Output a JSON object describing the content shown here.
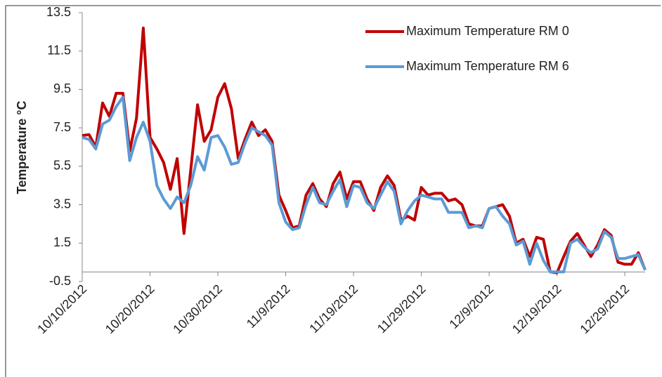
{
  "chart_data": {
    "type": "line",
    "ylabel": "Temperature °C",
    "x": [
      "10/10/2012",
      "10/11/2012",
      "10/12/2012",
      "10/13/2012",
      "10/14/2012",
      "10/15/2012",
      "10/16/2012",
      "10/17/2012",
      "10/18/2012",
      "10/19/2012",
      "10/20/2012",
      "10/21/2012",
      "10/22/2012",
      "10/23/2012",
      "10/24/2012",
      "10/25/2012",
      "10/26/2012",
      "10/27/2012",
      "10/28/2012",
      "10/29/2012",
      "10/30/2012",
      "10/31/2012",
      "11/1/2012",
      "11/2/2012",
      "11/3/2012",
      "11/4/2012",
      "11/5/2012",
      "11/6/2012",
      "11/7/2012",
      "11/8/2012",
      "11/9/2012",
      "11/10/2012",
      "11/11/2012",
      "11/12/2012",
      "11/13/2012",
      "11/14/2012",
      "11/15/2012",
      "11/16/2012",
      "11/17/2012",
      "11/18/2012",
      "11/19/2012",
      "11/20/2012",
      "11/21/2012",
      "11/22/2012",
      "11/23/2012",
      "11/24/2012",
      "11/25/2012",
      "11/26/2012",
      "11/27/2012",
      "11/28/2012",
      "11/29/2012",
      "11/30/2012",
      "12/1/2012",
      "12/2/2012",
      "12/3/2012",
      "12/4/2012",
      "12/5/2012",
      "12/6/2012",
      "12/7/2012",
      "12/8/2012",
      "12/9/2012",
      "12/10/2012",
      "12/11/2012",
      "12/12/2012",
      "12/13/2012",
      "12/14/2012",
      "12/15/2012",
      "12/16/2012",
      "12/17/2012",
      "12/18/2012",
      "12/19/2012",
      "12/20/2012",
      "12/21/2012",
      "12/22/2012",
      "12/23/2012",
      "12/24/2012",
      "12/25/2012",
      "12/26/2012",
      "12/27/2012",
      "12/28/2012",
      "12/29/2012",
      "12/30/2012",
      "12/31/2012",
      "1/1/2013"
    ],
    "xticks": [
      "10/10/2012",
      "10/20/2012",
      "10/30/2012",
      "11/9/2012",
      "11/19/2012",
      "11/29/2012",
      "12/9/2012",
      "12/19/2012",
      "12/29/2012"
    ],
    "series": [
      {
        "name": "Maximum Temperature RM 0",
        "color": "#c00000",
        "values": [
          7.1,
          7.15,
          6.5,
          8.8,
          8.1,
          9.3,
          9.3,
          6.3,
          8.0,
          12.7,
          7.0,
          6.4,
          5.7,
          4.3,
          5.9,
          2.0,
          5.3,
          8.7,
          6.8,
          7.4,
          9.1,
          9.8,
          8.5,
          5.9,
          6.9,
          7.8,
          7.1,
          7.4,
          6.8,
          4.0,
          3.2,
          2.3,
          2.4,
          4.0,
          4.6,
          3.8,
          3.4,
          4.6,
          5.2,
          3.8,
          4.7,
          4.7,
          3.8,
          3.2,
          4.4,
          5.0,
          4.5,
          2.7,
          2.9,
          2.7,
          4.4,
          4.0,
          4.1,
          4.1,
          3.7,
          3.8,
          3.5,
          2.5,
          2.4,
          2.4,
          3.3,
          3.4,
          3.5,
          2.9,
          1.5,
          1.7,
          0.8,
          1.8,
          1.7,
          0.0,
          -0.05,
          0.8,
          1.6,
          2.0,
          1.4,
          0.8,
          1.4,
          2.2,
          1.9,
          0.5,
          0.4,
          0.4,
          1.0,
          0.1
        ]
      },
      {
        "name": "Maximum Temperature RM 6",
        "color": "#5b9bd5",
        "values": [
          7.0,
          6.9,
          6.4,
          7.7,
          7.9,
          8.6,
          9.1,
          5.8,
          7.0,
          7.8,
          6.8,
          4.5,
          3.8,
          3.3,
          3.9,
          3.6,
          4.5,
          6.0,
          5.3,
          7.0,
          7.1,
          6.5,
          5.6,
          5.7,
          6.7,
          7.5,
          7.3,
          7.1,
          6.6,
          3.6,
          2.6,
          2.2,
          2.3,
          3.5,
          4.4,
          3.6,
          3.5,
          4.2,
          4.8,
          3.4,
          4.5,
          4.4,
          3.6,
          3.3,
          4.0,
          4.7,
          4.2,
          2.5,
          3.2,
          3.7,
          4.0,
          3.9,
          3.8,
          3.8,
          3.1,
          3.1,
          3.1,
          2.3,
          2.4,
          2.3,
          3.3,
          3.4,
          2.9,
          2.5,
          1.4,
          1.6,
          0.4,
          1.5,
          0.6,
          0.0,
          0.0,
          0.0,
          1.5,
          1.7,
          1.3,
          1.0,
          1.2,
          2.1,
          1.8,
          0.7,
          0.7,
          0.8,
          0.9,
          0.1
        ]
      }
    ],
    "ylim": [
      -0.5,
      13.5
    ],
    "yticks": [
      -0.5,
      1.5,
      3.5,
      5.5,
      7.5,
      9.5,
      11.5,
      13.5
    ],
    "grid": false,
    "legend": "top-right"
  }
}
